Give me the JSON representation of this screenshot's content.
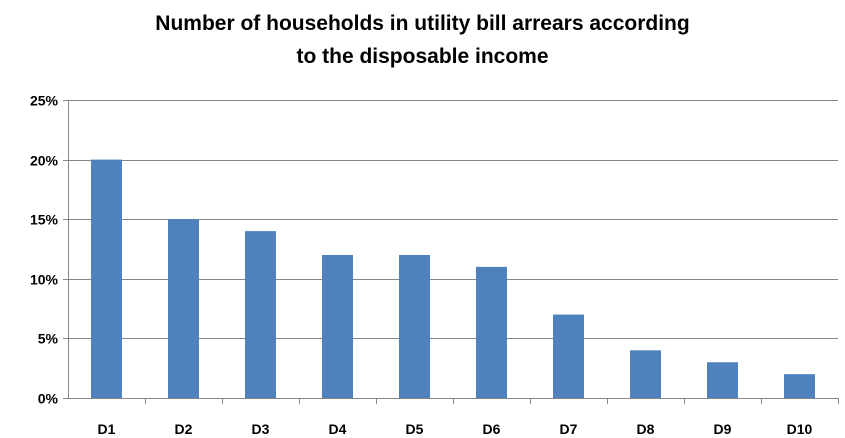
{
  "chart_data": {
    "type": "bar",
    "title_lines": [
      "Number of households  in utility bill arrears according",
      "to the  disposable  income"
    ],
    "xlabel": "",
    "ylabel": "",
    "categories": [
      "D1",
      "D2",
      "D3",
      "D4",
      "D5",
      "D6",
      "D7",
      "D8",
      "D9",
      "D10"
    ],
    "values": [
      20,
      15,
      14,
      12,
      12,
      11,
      7,
      4,
      3,
      2
    ],
    "value_unit": "%",
    "ylim": [
      0,
      25
    ],
    "yticks": [
      0,
      5,
      10,
      15,
      20,
      25
    ],
    "ytick_labels": [
      "0%",
      "5%",
      "10%",
      "15%",
      "20%",
      "25%"
    ],
    "grid": true,
    "legend": "none",
    "colors": {
      "bar": "#4f81bd",
      "grid": "#868686",
      "axis": "#868686"
    }
  }
}
